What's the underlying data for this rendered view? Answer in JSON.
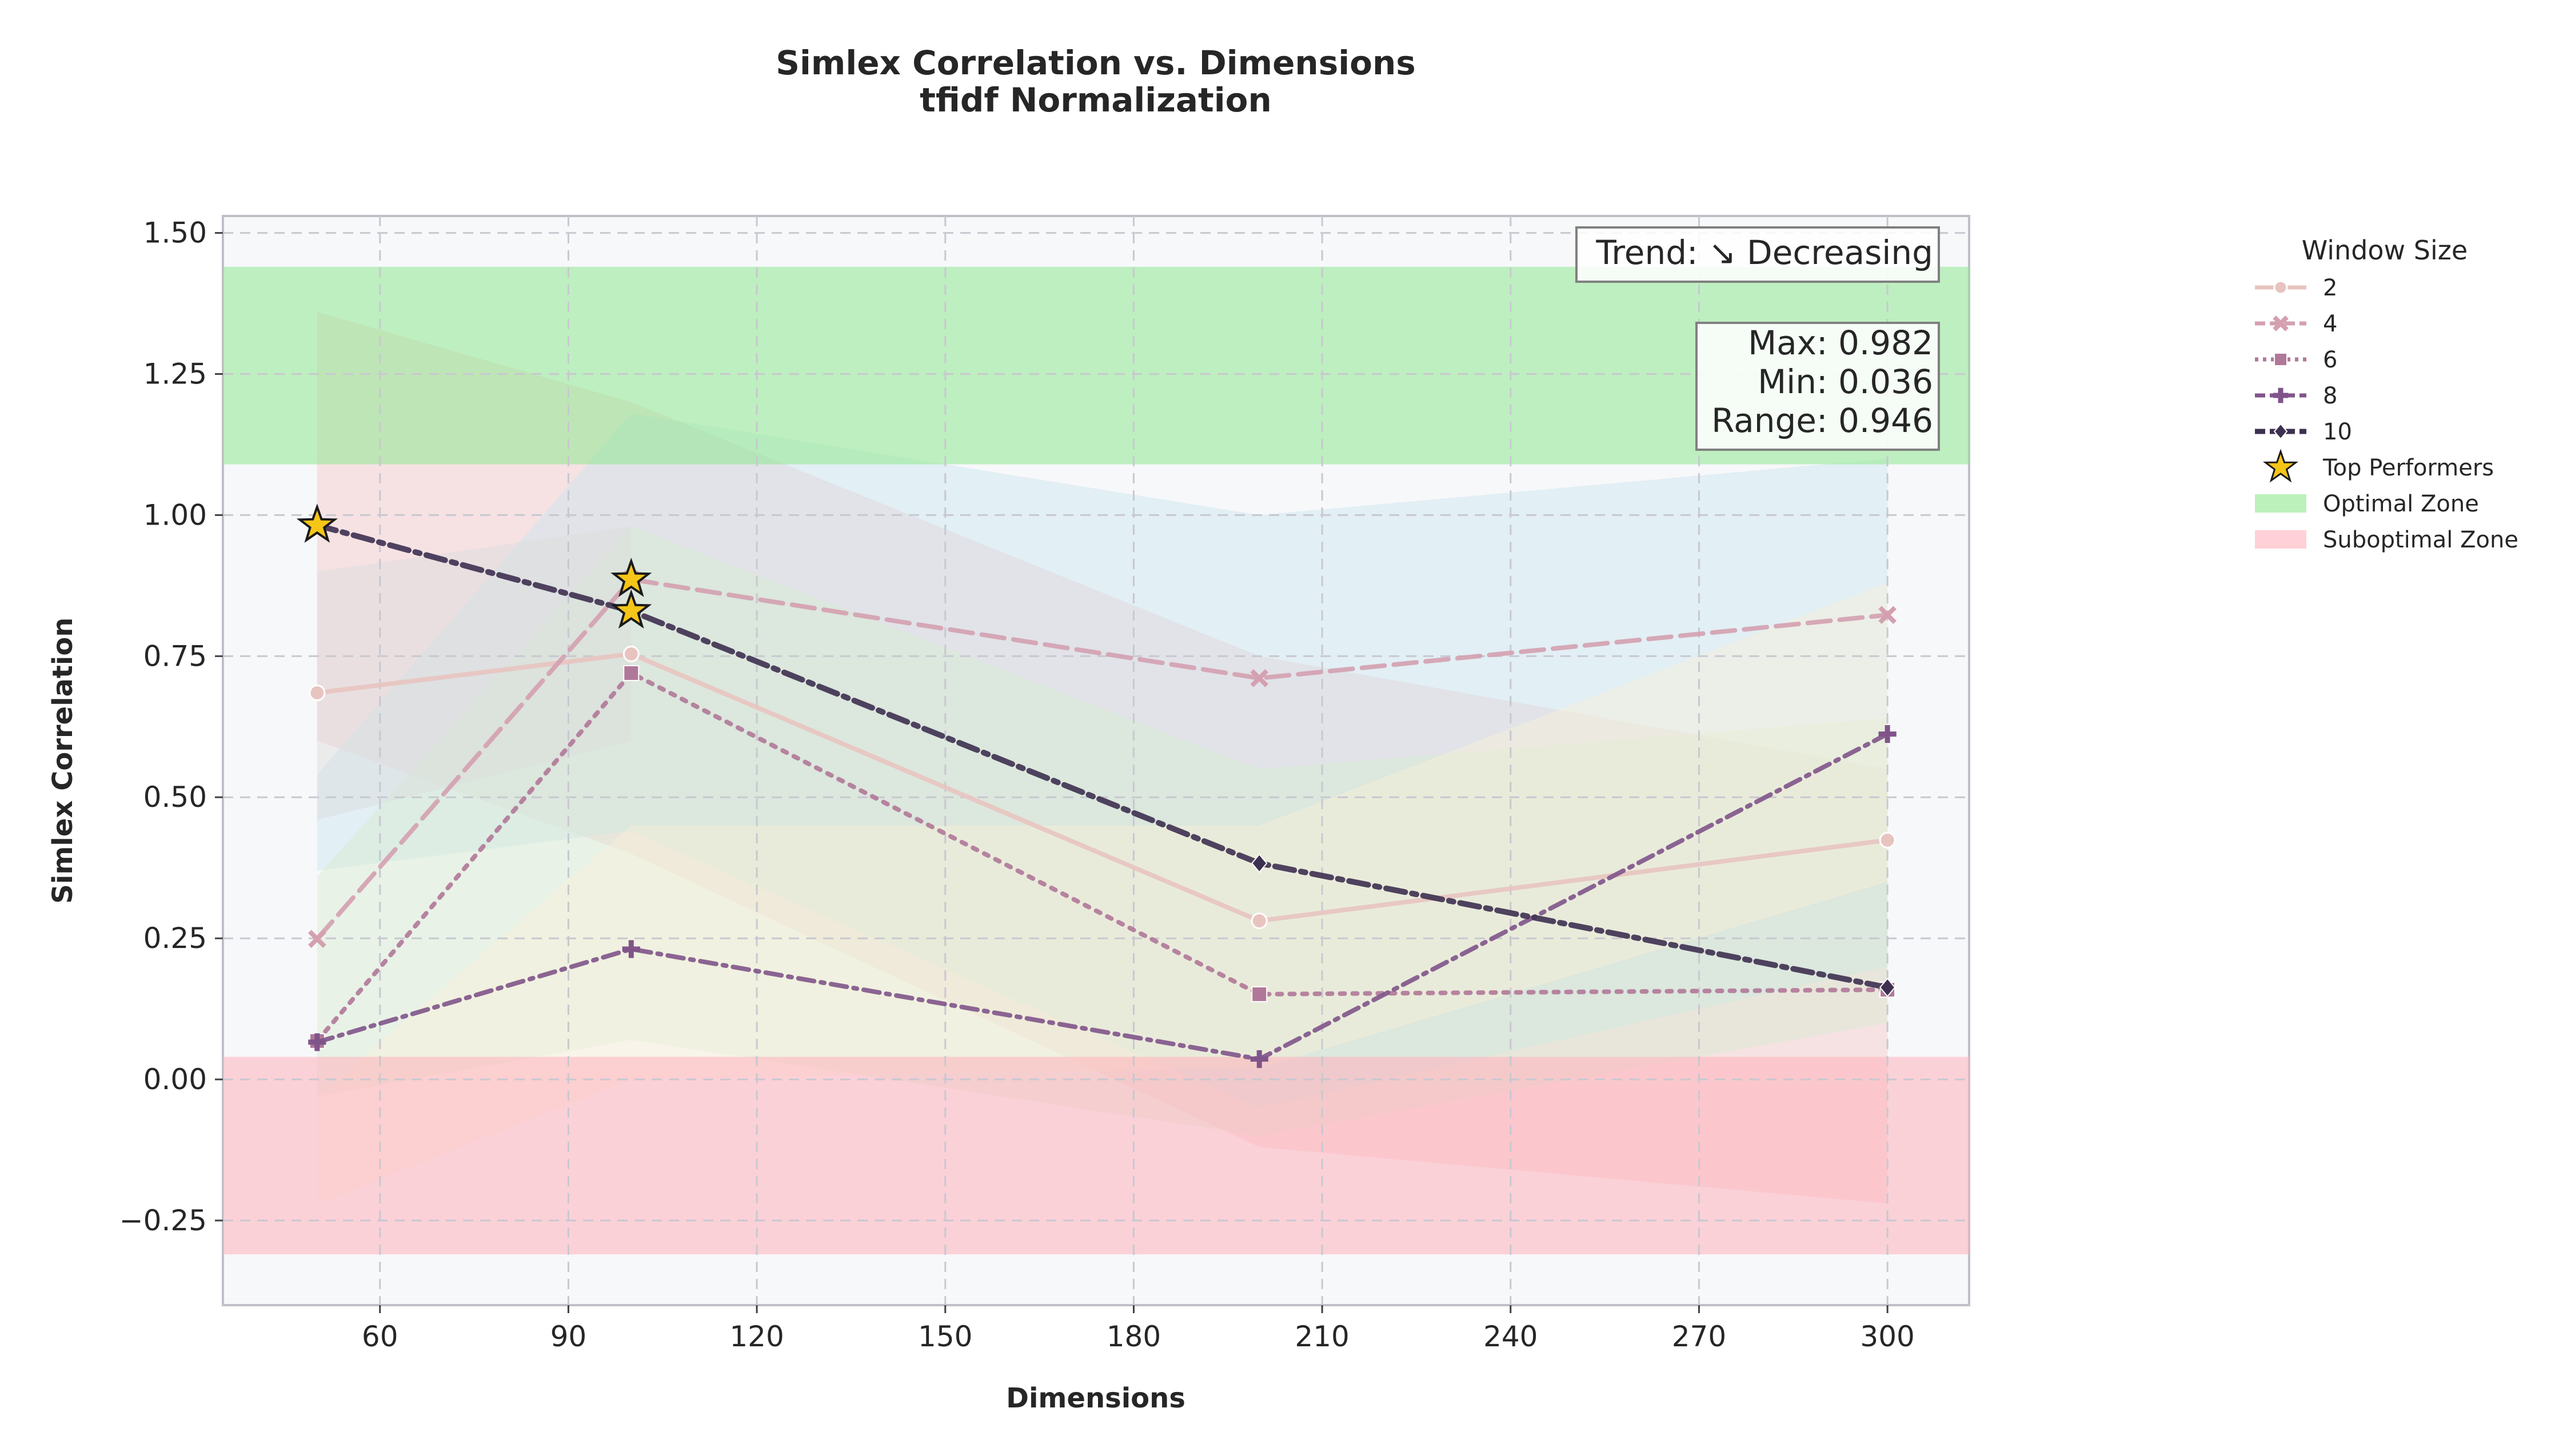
{
  "chart_data": {
    "type": "line",
    "title": "Simlex Correlation vs. Dimensions",
    "subtitle": "tfidf Normalization",
    "xlabel": "Dimensions",
    "ylabel": "Simlex Correlation",
    "xlim": [
      35,
      313
    ],
    "ylim": [
      -0.4,
      1.53
    ],
    "x_ticks": [
      60,
      90,
      120,
      150,
      180,
      210,
      240,
      270,
      300
    ],
    "x_tick_labels": [
      "60",
      "90",
      "120",
      "150",
      "180",
      "210",
      "240",
      "270",
      "300"
    ],
    "y_ticks": [
      -0.25,
      0.0,
      0.25,
      0.5,
      0.75,
      1.0,
      1.25,
      1.5
    ],
    "y_tick_labels": [
      "−0.25",
      "0.00",
      "0.25",
      "0.50",
      "0.75",
      "1.00",
      "1.25",
      "1.50"
    ],
    "grid": true,
    "x": [
      50,
      100,
      200,
      300
    ],
    "series": [
      {
        "name": "2",
        "values": [
          0.685,
          0.754,
          0.281,
          0.424
        ],
        "color": "#e8c4c0",
        "dash": "solid",
        "marker": "circle"
      },
      {
        "name": "4",
        "values": [
          0.249,
          0.886,
          0.711,
          0.823
        ],
        "color": "#d4a0b0",
        "dash": "dashed",
        "marker": "x"
      },
      {
        "name": "6",
        "values": [
          0.068,
          0.72,
          0.151,
          0.159
        ],
        "color": "#b07898",
        "dash": "dotted",
        "marker": "square"
      },
      {
        "name": "8",
        "values": [
          0.066,
          0.231,
          0.036,
          0.612
        ],
        "color": "#80548a",
        "dash": "dashdot",
        "marker": "plus"
      },
      {
        "name": "10",
        "values": [
          0.982,
          0.83,
          0.383,
          0.163
        ],
        "color": "#3d3050",
        "dash": "dashdotbold",
        "marker": "diamond"
      }
    ],
    "top_performers": [
      {
        "x": 50,
        "y": 0.982
      },
      {
        "x": 100,
        "y": 0.886
      },
      {
        "x": 100,
        "y": 0.83
      }
    ],
    "zones": [
      {
        "name": "Optimal Zone",
        "y0": 1.09,
        "y1": 1.44,
        "color": "#90e890"
      },
      {
        "name": "Suboptimal Zone",
        "y0": -0.31,
        "y1": 0.04,
        "color": "#ffb0bc"
      }
    ],
    "background_bands": [
      {
        "color": "#f5c8c8",
        "pts": [
          [
            50,
            1.36
          ],
          [
            100,
            1.2
          ],
          [
            200,
            0.75
          ],
          [
            300,
            0.55
          ],
          [
            300,
            -0.22
          ],
          [
            200,
            -0.12
          ],
          [
            100,
            0.4
          ],
          [
            50,
            0.6
          ]
        ]
      },
      {
        "color": "#c8e4ee",
        "pts": [
          [
            50,
            0.54
          ],
          [
            100,
            1.18
          ],
          [
            200,
            1.0
          ],
          [
            300,
            1.1
          ],
          [
            300,
            0.2
          ],
          [
            200,
            -0.05
          ],
          [
            100,
            0.44
          ],
          [
            50,
            0.37
          ]
        ]
      },
      {
        "color": "#d8ecd0",
        "pts": [
          [
            50,
            0.36
          ],
          [
            100,
            0.98
          ],
          [
            200,
            0.55
          ],
          [
            300,
            0.64
          ],
          [
            300,
            0.1
          ],
          [
            200,
            -0.1
          ],
          [
            100,
            0.07
          ],
          [
            50,
            -0.03
          ]
        ]
      },
      {
        "color": "#f8f0d8",
        "pts": [
          [
            50,
            -0.03
          ],
          [
            100,
            0.45
          ],
          [
            200,
            0.45
          ],
          [
            300,
            0.88
          ],
          [
            300,
            0.35
          ],
          [
            200,
            0.02
          ],
          [
            100,
            0.0
          ],
          [
            50,
            -0.22
          ]
        ]
      },
      {
        "color": "#dcdcdc",
        "pts": [
          [
            50,
            0.9
          ],
          [
            100,
            0.98
          ],
          [
            100,
            0.6
          ],
          [
            50,
            0.46
          ]
        ]
      }
    ],
    "annotations": {
      "trend": "Trend: ↘ Decreasing",
      "stats": [
        "Max: 0.982",
        "Min: 0.036",
        "Range: 0.946"
      ]
    },
    "legend": {
      "title": "Window Size",
      "placement": "outside-right",
      "entries": [
        "2",
        "4",
        "6",
        "8",
        "10",
        "Top Performers",
        "Optimal Zone",
        "Suboptimal Zone"
      ]
    }
  }
}
